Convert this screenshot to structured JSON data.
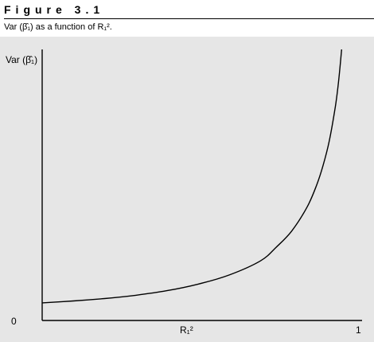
{
  "figure": {
    "label": "Figure 3.1",
    "caption": "Var (β̂₁) as a function of R₁²."
  },
  "chart_data": {
    "type": "line",
    "title": "Var (β̂₁) as a function of R₁².",
    "ylabel": "Var (β̂₁)",
    "xlabel": "R₁²",
    "x_ticks": [
      {
        "value": 0,
        "label": "0"
      },
      {
        "value": 1,
        "label": "1"
      }
    ],
    "xlim": [
      0,
      1
    ],
    "ylim": [
      0,
      100
    ],
    "grid": false,
    "series": [
      {
        "name": "Var(β̂₁)",
        "x": [
          0.0,
          0.1,
          0.2,
          0.3,
          0.4,
          0.5,
          0.6,
          0.7,
          0.75,
          0.8,
          0.85,
          0.88,
          0.9,
          0.92,
          0.94,
          0.95,
          0.96
        ],
        "y": [
          6.5,
          7.2,
          8.1,
          9.3,
          11.0,
          13.4,
          16.8,
          22.0,
          27.0,
          33.0,
          42.0,
          50.0,
          57.0,
          66.0,
          79.0,
          88.0,
          100.0
        ]
      }
    ]
  }
}
